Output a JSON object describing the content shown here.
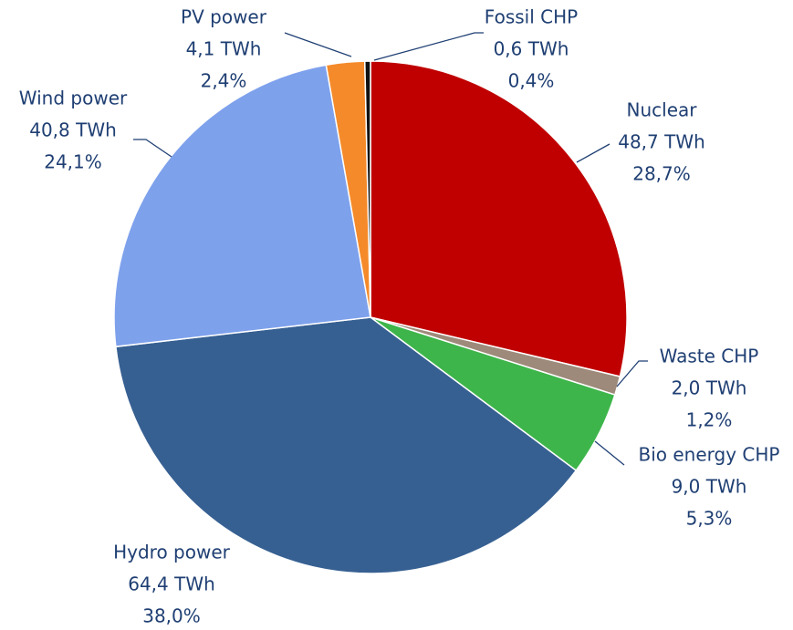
{
  "chart_data": {
    "type": "pie",
    "categories": [
      "Nuclear",
      "Waste CHP",
      "Bio energy CHP",
      "Hydro power",
      "Wind power",
      "PV power",
      "Fossil CHP"
    ],
    "values": [
      48.7,
      2.0,
      9.0,
      64.4,
      40.8,
      4.1,
      0.6
    ],
    "value_labels": [
      "48,7 TWh",
      "2,0 TWh",
      "9,0 TWh",
      "64,4 TWh",
      "40,8 TWh",
      "4,1 TWh",
      "0,6 TWh"
    ],
    "percents": [
      28.7,
      1.2,
      5.3,
      38.0,
      24.1,
      2.4,
      0.4
    ],
    "percent_labels": [
      "28,7%",
      "1,2%",
      "5,3%",
      "38,0%",
      "24,1%",
      "2,4%",
      "0,4%"
    ],
    "colors": [
      "#c00000",
      "#9e8a7a",
      "#3db54a",
      "#376092",
      "#7ea1ec",
      "#f58a2a",
      "#111111"
    ]
  }
}
